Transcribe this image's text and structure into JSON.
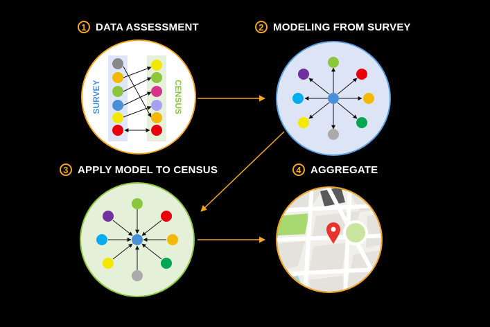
{
  "steps": [
    {
      "number": "1",
      "title": "DATA ASSESSMENT"
    },
    {
      "number": "2",
      "title": "MODELING FROM SURVEY"
    },
    {
      "number": "3",
      "title": "APPLY MODEL TO CENSUS"
    },
    {
      "number": "4",
      "title": "AGGREGATE"
    }
  ],
  "panel1": {
    "survey_label": "SURVEY",
    "census_label": "CENSUS"
  },
  "colors": {
    "accent": "#f5a623",
    "survey_text": "#4a90d9",
    "census_text": "#8cc63f",
    "circle1_fill": "#ffffff",
    "circle2_fill": "#dce4f5",
    "circle3_fill": "#e4f0d8",
    "circle2_stroke": "#5aa0e0",
    "circle3_stroke": "#8cc63f"
  },
  "icons": [
    "node-network-icon",
    "map-pin-icon"
  ]
}
